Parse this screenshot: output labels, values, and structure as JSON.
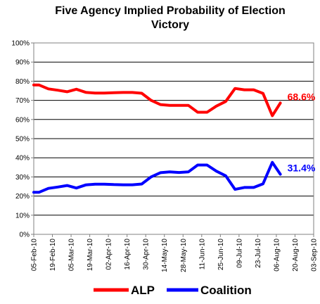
{
  "chart_data": {
    "type": "line",
    "title_line1": "Five Agency Implied Probability of Election",
    "title_line2": "Victory",
    "x_tick_labels": [
      "05-Feb-10",
      "19-Feb-10",
      "05-Mar-10",
      "19-Mar-10",
      "02-Apr-10",
      "16-Apr-10",
      "30-Apr-10",
      "14-May-10",
      "28-May-10",
      "11-Jun-10",
      "25-Jun-10",
      "09-Jul-10",
      "23-Jul-10",
      "06-Aug-10",
      "20-Aug-10",
      "03-Sep-10"
    ],
    "y_tick_labels": [
      "0%",
      "10%",
      "20%",
      "30%",
      "40%",
      "50%",
      "60%",
      "70%",
      "80%",
      "90%",
      "100%"
    ],
    "ylim": [
      0,
      100
    ],
    "grid": "horizontal",
    "legend_position": "bottom",
    "series": [
      {
        "name": "ALP",
        "color": "#ff0000",
        "end_label": "68.6%",
        "points": [
          [
            "2010-02-05",
            78.0
          ],
          [
            "2010-02-09",
            78.0
          ],
          [
            "2010-02-16",
            76.0
          ],
          [
            "2010-02-23",
            75.3
          ],
          [
            "2010-03-02",
            74.5
          ],
          [
            "2010-03-09",
            75.8
          ],
          [
            "2010-03-16",
            74.2
          ],
          [
            "2010-03-23",
            73.8
          ],
          [
            "2010-03-30",
            73.8
          ],
          [
            "2010-04-06",
            74.0
          ],
          [
            "2010-04-13",
            74.1
          ],
          [
            "2010-04-20",
            74.1
          ],
          [
            "2010-04-27",
            73.7
          ],
          [
            "2010-05-04",
            70.0
          ],
          [
            "2010-05-11",
            67.8
          ],
          [
            "2010-05-18",
            67.4
          ],
          [
            "2010-05-25",
            67.4
          ],
          [
            "2010-06-01",
            67.4
          ],
          [
            "2010-06-08",
            63.8
          ],
          [
            "2010-06-15",
            63.8
          ],
          [
            "2010-06-22",
            67.0
          ],
          [
            "2010-06-29",
            69.4
          ],
          [
            "2010-07-06",
            76.2
          ],
          [
            "2010-07-13",
            75.5
          ],
          [
            "2010-07-20",
            75.5
          ],
          [
            "2010-07-27",
            73.6
          ],
          [
            "2010-08-03",
            62.0
          ],
          [
            "2010-08-09",
            68.6
          ]
        ]
      },
      {
        "name": "Coalition",
        "color": "#0000ff",
        "end_label": "31.4%",
        "points": [
          [
            "2010-02-05",
            22.0
          ],
          [
            "2010-02-09",
            22.0
          ],
          [
            "2010-02-16",
            24.0
          ],
          [
            "2010-02-23",
            24.7
          ],
          [
            "2010-03-02",
            25.5
          ],
          [
            "2010-03-09",
            24.2
          ],
          [
            "2010-03-16",
            25.8
          ],
          [
            "2010-03-23",
            26.2
          ],
          [
            "2010-03-30",
            26.2
          ],
          [
            "2010-04-06",
            26.0
          ],
          [
            "2010-04-13",
            25.9
          ],
          [
            "2010-04-20",
            25.9
          ],
          [
            "2010-04-27",
            26.3
          ],
          [
            "2010-05-04",
            30.0
          ],
          [
            "2010-05-11",
            32.2
          ],
          [
            "2010-05-18",
            32.6
          ],
          [
            "2010-05-25",
            32.3
          ],
          [
            "2010-06-01",
            32.6
          ],
          [
            "2010-06-08",
            36.2
          ],
          [
            "2010-06-15",
            36.2
          ],
          [
            "2010-06-22",
            33.0
          ],
          [
            "2010-06-29",
            30.6
          ],
          [
            "2010-07-06",
            23.5
          ],
          [
            "2010-07-13",
            24.5
          ],
          [
            "2010-07-20",
            24.5
          ],
          [
            "2010-07-27",
            26.4
          ],
          [
            "2010-08-03",
            37.6
          ],
          [
            "2010-08-09",
            31.4
          ]
        ]
      }
    ]
  }
}
